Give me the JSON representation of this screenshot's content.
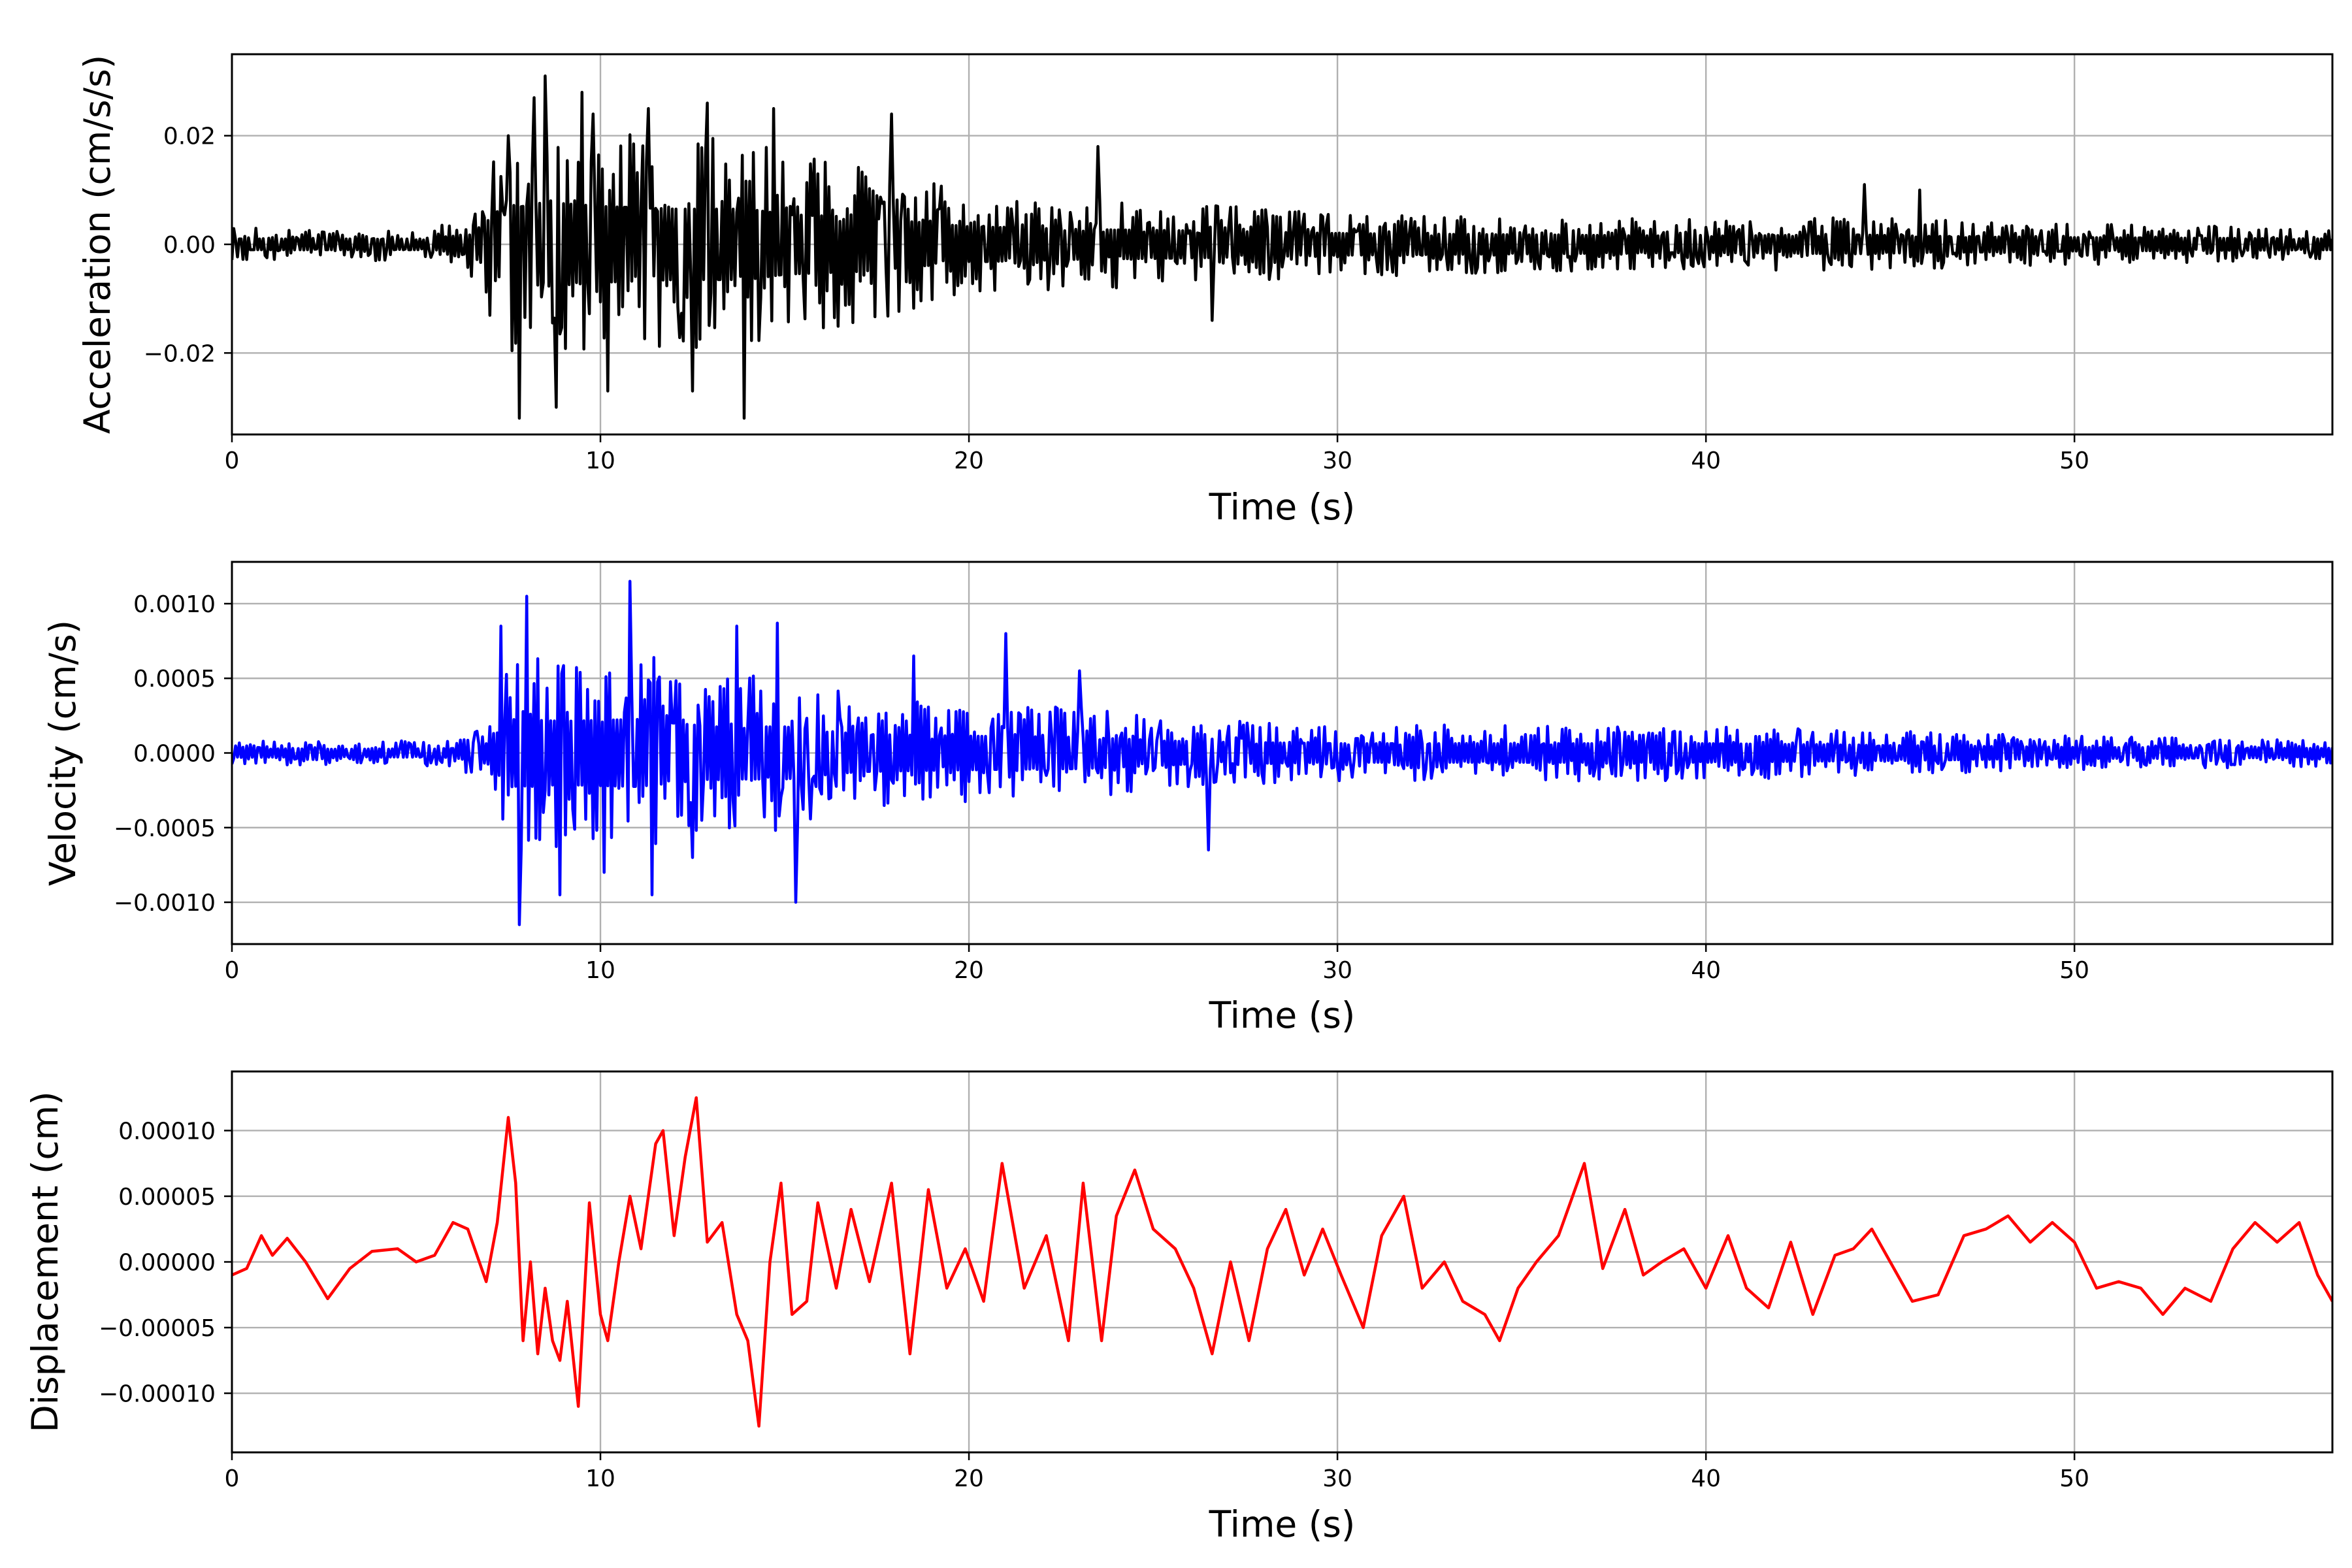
{
  "chart_data": [
    {
      "type": "line",
      "xlabel": "Time (s)",
      "ylabel": "Acceleration (cm/s/s)",
      "xlim": [
        0,
        57
      ],
      "ylim": [
        -0.035,
        0.035
      ],
      "xticks": [
        0,
        10,
        20,
        30,
        40,
        50
      ],
      "xtick_labels": [
        "0",
        "10",
        "20",
        "30",
        "40",
        "50"
      ],
      "yticks": [
        -0.02,
        0.0,
        0.02
      ],
      "ytick_labels": [
        "−0.02",
        "0.00",
        "0.02"
      ],
      "grid": true,
      "color": "#000000",
      "series": [
        {
          "dt": 0.05,
          "envelope": [
            [
              0,
              0.004
            ],
            [
              3,
              0.004
            ],
            [
              5.5,
              0.004
            ],
            [
              6.5,
              0.008
            ],
            [
              7.3,
              0.025
            ],
            [
              8.5,
              0.031
            ],
            [
              10,
              0.028
            ],
            [
              12,
              0.026
            ],
            [
              14,
              0.026
            ],
            [
              15,
              0.022
            ],
            [
              17,
              0.02
            ],
            [
              20,
              0.013
            ],
            [
              23,
              0.011
            ],
            [
              26,
              0.01
            ],
            [
              30,
              0.008
            ],
            [
              35,
              0.007
            ],
            [
              40,
              0.006
            ],
            [
              44,
              0.007
            ],
            [
              46,
              0.006
            ],
            [
              50,
              0.005
            ],
            [
              57,
              0.004
            ]
          ],
          "peaks": [
            [
              7.5,
              0.02
            ],
            [
              7.8,
              -0.032
            ],
            [
              8.2,
              0.027
            ],
            [
              8.5,
              0.031
            ],
            [
              8.8,
              -0.03
            ],
            [
              9.5,
              0.028
            ],
            [
              9.8,
              0.024
            ],
            [
              10.2,
              -0.027
            ],
            [
              11.3,
              0.025
            ],
            [
              12.5,
              -0.027
            ],
            [
              12.9,
              0.026
            ],
            [
              13.9,
              -0.032
            ],
            [
              14.7,
              0.025
            ],
            [
              17.9,
              0.024
            ],
            [
              23.5,
              0.018
            ],
            [
              26.6,
              -0.014
            ],
            [
              44.3,
              0.011
            ],
            [
              45.8,
              0.01
            ]
          ]
        }
      ]
    },
    {
      "type": "line",
      "xlabel": "Time (s)",
      "ylabel": "Velocity (cm/s)",
      "xlim": [
        0,
        57
      ],
      "ylim": [
        -0.00128,
        0.00128
      ],
      "xticks": [
        0,
        10,
        20,
        30,
        40,
        50
      ],
      "xtick_labels": [
        "0",
        "10",
        "20",
        "30",
        "40",
        "50"
      ],
      "yticks": [
        -0.001,
        -0.0005,
        0.0,
        0.0005,
        0.001
      ],
      "ytick_labels": [
        "−0.0010",
        "−0.0005",
        "0.0000",
        "0.0005",
        "0.0010"
      ],
      "grid": true,
      "color": "#0000ff",
      "series": [
        {
          "dt": 0.05,
          "envelope": [
            [
              0,
              0.00012
            ],
            [
              3,
              0.0001
            ],
            [
              6,
              0.00012
            ],
            [
              7,
              0.0003
            ],
            [
              7.5,
              0.0009
            ],
            [
              9,
              0.00085
            ],
            [
              11,
              0.0009
            ],
            [
              13,
              0.0007
            ],
            [
              15,
              0.0007
            ],
            [
              17,
              0.0005
            ],
            [
              20,
              0.00045
            ],
            [
              23,
              0.00042
            ],
            [
              26,
              0.0003
            ],
            [
              30,
              0.00025
            ],
            [
              40,
              0.00025
            ],
            [
              50,
              0.00015
            ],
            [
              57,
              0.00012
            ]
          ],
          "peaks": [
            [
              7.3,
              0.00085
            ],
            [
              7.8,
              -0.00115
            ],
            [
              8.0,
              0.00105
            ],
            [
              8.9,
              -0.00095
            ],
            [
              10.1,
              -0.0008
            ],
            [
              10.8,
              0.00115
            ],
            [
              11.4,
              -0.00095
            ],
            [
              12.5,
              -0.0007
            ],
            [
              13.7,
              0.00085
            ],
            [
              14.8,
              0.00087
            ],
            [
              15.3,
              -0.001
            ],
            [
              18.5,
              0.00065
            ],
            [
              21.0,
              0.0008
            ],
            [
              23.0,
              0.00055
            ],
            [
              26.5,
              -0.00065
            ]
          ]
        }
      ]
    },
    {
      "type": "line",
      "xlabel": "Time (s)",
      "ylabel": "Displacement (cm)",
      "xlim": [
        0,
        57
      ],
      "ylim": [
        -0.000145,
        0.000145
      ],
      "xticks": [
        0,
        10,
        20,
        30,
        40,
        50
      ],
      "xtick_labels": [
        "0",
        "10",
        "20",
        "30",
        "40",
        "50"
      ],
      "yticks": [
        -0.0001,
        -5e-05,
        0.0,
        5e-05,
        0.0001
      ],
      "ytick_labels": [
        "−0.00010",
        "−0.00005",
        "0.00000",
        "0.00005",
        "0.00010"
      ],
      "grid": true,
      "color": "#ff0000",
      "series": [
        {
          "dt": 0.1,
          "points": [
            [
              0,
              -1e-05
            ],
            [
              0.4,
              -5e-06
            ],
            [
              0.8,
              2e-05
            ],
            [
              1.1,
              5e-06
            ],
            [
              1.5,
              1.8e-05
            ],
            [
              2.0,
              0.0
            ],
            [
              2.6,
              -2.8e-05
            ],
            [
              3.2,
              -5e-06
            ],
            [
              3.8,
              8e-06
            ],
            [
              4.5,
              1e-05
            ],
            [
              5.0,
              0.0
            ],
            [
              5.5,
              5e-06
            ],
            [
              6.0,
              3e-05
            ],
            [
              6.4,
              2.5e-05
            ],
            [
              6.9,
              -1.5e-05
            ],
            [
              7.2,
              3e-05
            ],
            [
              7.5,
              0.00011
            ],
            [
              7.7,
              6e-05
            ],
            [
              7.9,
              -6e-05
            ],
            [
              8.1,
              0.0
            ],
            [
              8.3,
              -7e-05
            ],
            [
              8.5,
              -2e-05
            ],
            [
              8.7,
              -6e-05
            ],
            [
              8.9,
              -7.5e-05
            ],
            [
              9.1,
              -3e-05
            ],
            [
              9.4,
              -0.00011
            ],
            [
              9.7,
              4.5e-05
            ],
            [
              10.0,
              -4e-05
            ],
            [
              10.2,
              -6e-05
            ],
            [
              10.5,
              0.0
            ],
            [
              10.8,
              5e-05
            ],
            [
              11.1,
              1e-05
            ],
            [
              11.5,
              9e-05
            ],
            [
              11.7,
              0.0001
            ],
            [
              12.0,
              2e-05
            ],
            [
              12.3,
              8e-05
            ],
            [
              12.6,
              0.000125
            ],
            [
              12.9,
              1.5e-05
            ],
            [
              13.3,
              3e-05
            ],
            [
              13.7,
              -4e-05
            ],
            [
              14.0,
              -6e-05
            ],
            [
              14.3,
              -0.000125
            ],
            [
              14.6,
              0.0
            ],
            [
              14.9,
              6e-05
            ],
            [
              15.2,
              -4e-05
            ],
            [
              15.6,
              -3e-05
            ],
            [
              15.9,
              4.5e-05
            ],
            [
              16.4,
              -2e-05
            ],
            [
              16.8,
              4e-05
            ],
            [
              17.3,
              -1.5e-05
            ],
            [
              17.9,
              6e-05
            ],
            [
              18.4,
              -7e-05
            ],
            [
              18.9,
              5.5e-05
            ],
            [
              19.4,
              -2e-05
            ],
            [
              19.9,
              1e-05
            ],
            [
              20.4,
              -3e-05
            ],
            [
              20.9,
              7.5e-05
            ],
            [
              21.5,
              -2e-05
            ],
            [
              22.1,
              2e-05
            ],
            [
              22.7,
              -6e-05
            ],
            [
              23.1,
              6e-05
            ],
            [
              23.6,
              -6e-05
            ],
            [
              24.0,
              3.5e-05
            ],
            [
              24.5,
              7e-05
            ],
            [
              25.0,
              2.5e-05
            ],
            [
              25.6,
              1e-05
            ],
            [
              26.1,
              -2e-05
            ],
            [
              26.6,
              -7e-05
            ],
            [
              27.1,
              0.0
            ],
            [
              27.6,
              -6e-05
            ],
            [
              28.1,
              1e-05
            ],
            [
              28.6,
              4e-05
            ],
            [
              29.1,
              -1e-05
            ],
            [
              29.6,
              2.5e-05
            ],
            [
              30.1,
              -1e-05
            ],
            [
              30.7,
              -5e-05
            ],
            [
              31.2,
              2e-05
            ],
            [
              31.8,
              5e-05
            ],
            [
              32.3,
              -2e-05
            ],
            [
              32.9,
              0.0
            ],
            [
              33.4,
              -3e-05
            ],
            [
              34.0,
              -4e-05
            ],
            [
              34.4,
              -6e-05
            ],
            [
              34.9,
              -2e-05
            ],
            [
              35.4,
              0.0
            ],
            [
              36.0,
              2e-05
            ],
            [
              36.7,
              7.5e-05
            ],
            [
              37.2,
              -5e-06
            ],
            [
              37.8,
              4e-05
            ],
            [
              38.3,
              -1e-05
            ],
            [
              38.8,
              0.0
            ],
            [
              39.4,
              1e-05
            ],
            [
              40.0,
              -2e-05
            ],
            [
              40.6,
              2e-05
            ],
            [
              41.1,
              -2e-05
            ],
            [
              41.7,
              -3.5e-05
            ],
            [
              42.3,
              1.5e-05
            ],
            [
              42.9,
              -4e-05
            ],
            [
              43.5,
              5e-06
            ],
            [
              44.0,
              1e-05
            ],
            [
              44.5,
              2.5e-05
            ],
            [
              45.0,
              0.0
            ],
            [
              45.6,
              -3e-05
            ],
            [
              46.3,
              -2.5e-05
            ],
            [
              47.0,
              2e-05
            ],
            [
              47.6,
              2.5e-05
            ],
            [
              48.2,
              3.5e-05
            ],
            [
              48.8,
              1.5e-05
            ],
            [
              49.4,
              3e-05
            ],
            [
              50.0,
              1.5e-05
            ],
            [
              50.6,
              -2e-05
            ],
            [
              51.2,
              -1.5e-05
            ],
            [
              51.8,
              -2e-05
            ],
            [
              52.4,
              -4e-05
            ],
            [
              53.0,
              -2e-05
            ],
            [
              53.7,
              -3e-05
            ],
            [
              54.3,
              1e-05
            ],
            [
              54.9,
              3e-05
            ],
            [
              55.5,
              1.5e-05
            ],
            [
              56.1,
              3e-05
            ],
            [
              56.6,
              -1e-05
            ],
            [
              57.0,
              -3e-05
            ]
          ]
        }
      ]
    }
  ]
}
